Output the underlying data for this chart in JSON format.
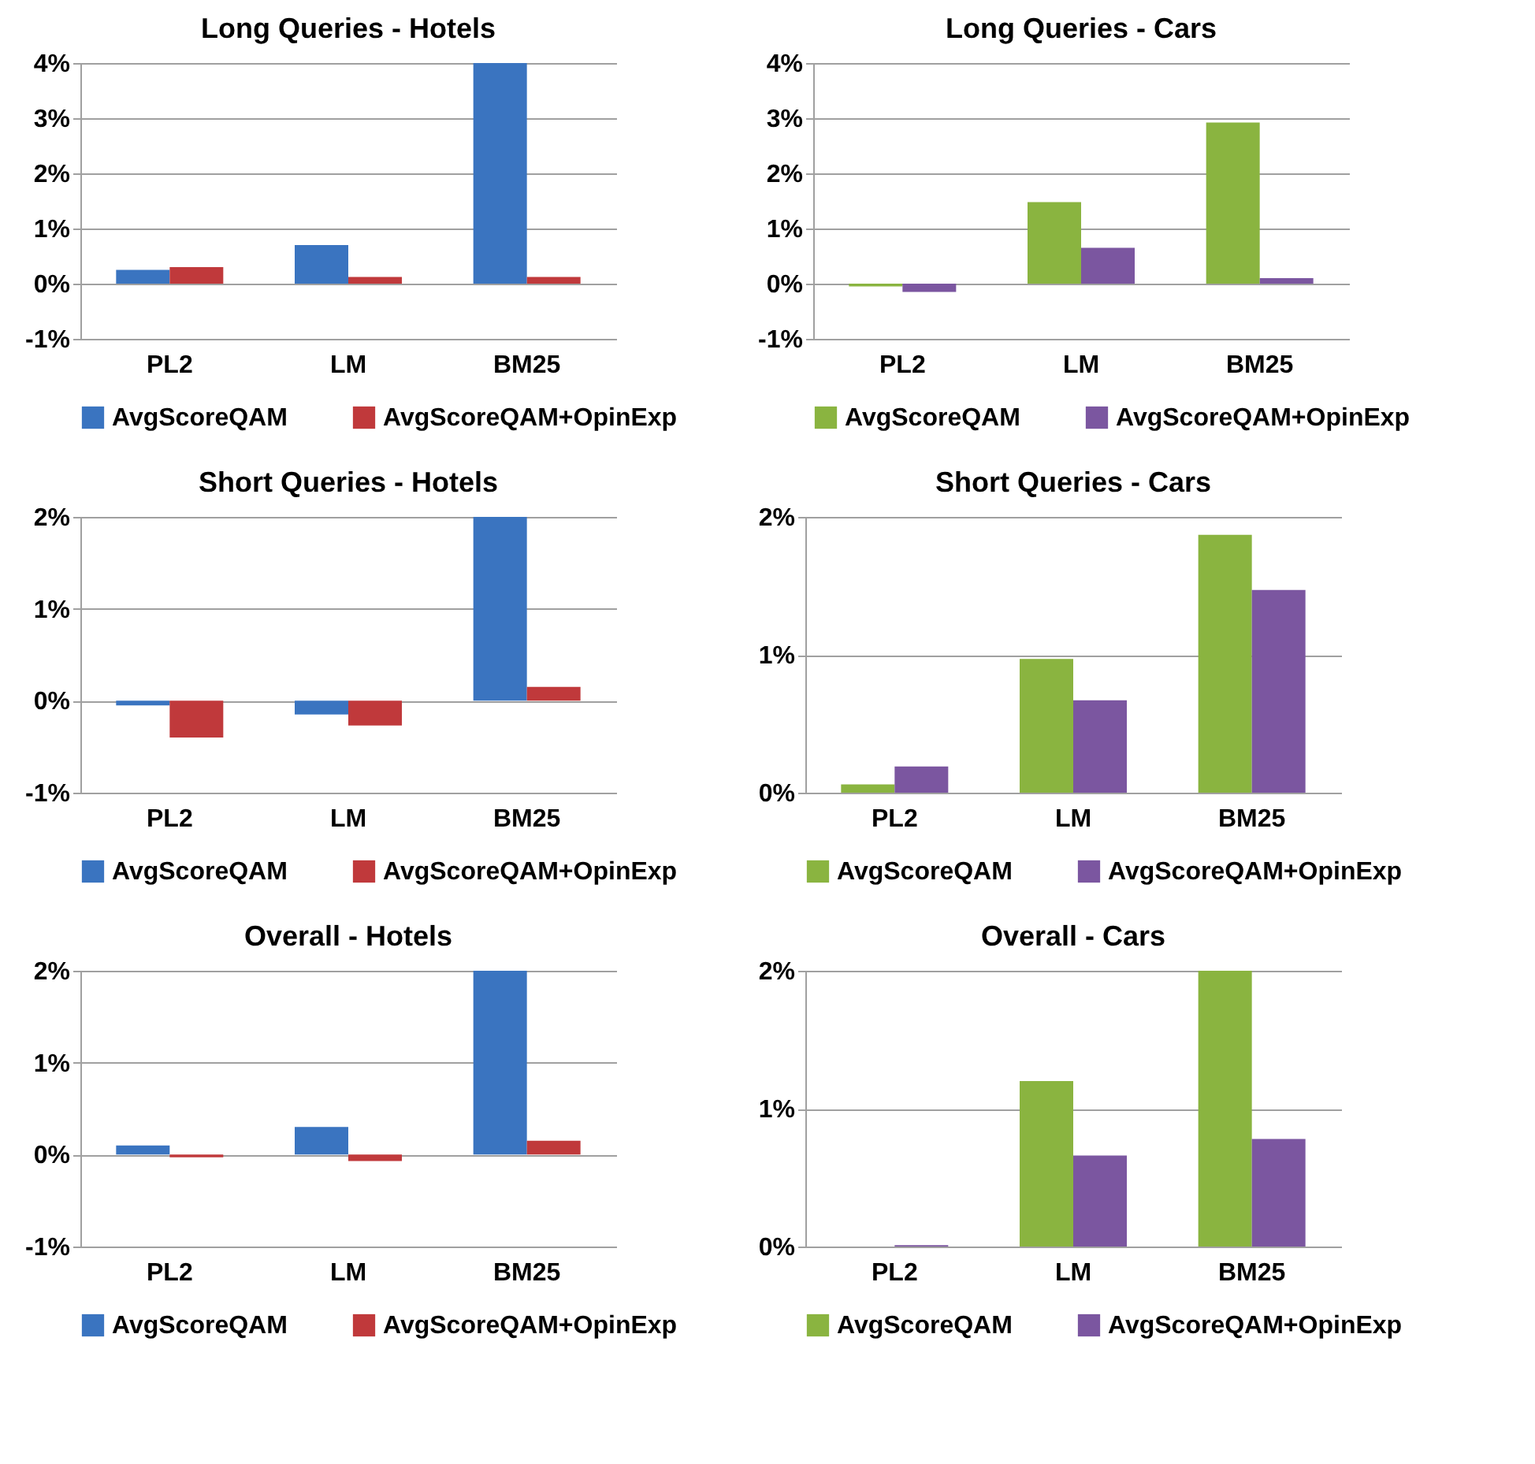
{
  "chart_data": [
    {
      "type": "bar",
      "title": "Long Queries - Hotels",
      "categories": [
        "PL2",
        "LM",
        "BM25"
      ],
      "ylim": [
        -1,
        4
      ],
      "yticks": [
        {
          "value": -1,
          "label": "-1%"
        },
        {
          "value": 0,
          "label": "0%"
        },
        {
          "value": 1,
          "label": "1%"
        },
        {
          "value": 2,
          "label": "2%"
        },
        {
          "value": 3,
          "label": "3%"
        },
        {
          "value": 4,
          "label": "4%"
        }
      ],
      "grid": "y",
      "legend": "bottom",
      "series": [
        {
          "name": "AvgScoreQAM",
          "color": "#3a74c0",
          "values": [
            0.25,
            0.7,
            4.0
          ]
        },
        {
          "name": "AvgScoreQAM+OpinExp",
          "color": "#c0393b",
          "values": [
            0.3,
            0.12,
            0.12
          ]
        }
      ]
    },
    {
      "type": "bar",
      "title": "Long Queries - Cars",
      "categories": [
        "PL2",
        "LM",
        "BM25"
      ],
      "ylim": [
        -1,
        4
      ],
      "yticks": [
        {
          "value": -1,
          "label": "-1%"
        },
        {
          "value": 0,
          "label": "0%"
        },
        {
          "value": 1,
          "label": "1%"
        },
        {
          "value": 2,
          "label": "2%"
        },
        {
          "value": 3,
          "label": "3%"
        },
        {
          "value": 4,
          "label": "4%"
        }
      ],
      "grid": "y",
      "legend": "bottom",
      "series": [
        {
          "name": "AvgScoreQAM",
          "color": "#8ab440",
          "values": [
            -0.05,
            1.48,
            2.92
          ]
        },
        {
          "name": "AvgScoreQAM+OpinExp",
          "color": "#7b56a0",
          "values": [
            -0.15,
            0.65,
            0.1
          ]
        }
      ]
    },
    {
      "type": "bar",
      "title": "Short Queries - Hotels",
      "categories": [
        "PL2",
        "LM",
        "BM25"
      ],
      "ylim": [
        -1,
        2
      ],
      "yticks": [
        {
          "value": -1,
          "label": "-1%"
        },
        {
          "value": 0,
          "label": "0%"
        },
        {
          "value": 1,
          "label": "1%"
        },
        {
          "value": 2,
          "label": "2%"
        }
      ],
      "grid": "y",
      "legend": "bottom",
      "series": [
        {
          "name": "AvgScoreQAM",
          "color": "#3a74c0",
          "values": [
            -0.05,
            -0.15,
            2.0
          ]
        },
        {
          "name": "AvgScoreQAM+OpinExp",
          "color": "#c0393b",
          "values": [
            -0.4,
            -0.27,
            0.15
          ]
        }
      ]
    },
    {
      "type": "bar",
      "title": "Short Queries - Cars",
      "categories": [
        "PL2",
        "LM",
        "BM25"
      ],
      "ylim": [
        0,
        2
      ],
      "yticks": [
        {
          "value": 0,
          "label": "0%"
        },
        {
          "value": 1,
          "label": "1%"
        },
        {
          "value": 2,
          "label": "2%"
        }
      ],
      "grid": "y",
      "legend": "bottom",
      "series": [
        {
          "name": "AvgScoreQAM",
          "color": "#8ab440",
          "values": [
            0.06,
            0.97,
            1.87
          ]
        },
        {
          "name": "AvgScoreQAM+OpinExp",
          "color": "#7b56a0",
          "values": [
            0.19,
            0.67,
            1.47
          ]
        }
      ]
    },
    {
      "type": "bar",
      "title": "Overall - Hotels",
      "categories": [
        "PL2",
        "LM",
        "BM25"
      ],
      "ylim": [
        -1,
        2
      ],
      "yticks": [
        {
          "value": -1,
          "label": "-1%"
        },
        {
          "value": 0,
          "label": "0%"
        },
        {
          "value": 1,
          "label": "1%"
        },
        {
          "value": 2,
          "label": "2%"
        }
      ],
      "grid": "y",
      "legend": "bottom",
      "series": [
        {
          "name": "AvgScoreQAM",
          "color": "#3a74c0",
          "values": [
            0.1,
            0.3,
            2.0
          ]
        },
        {
          "name": "AvgScoreQAM+OpinExp",
          "color": "#c0393b",
          "values": [
            -0.03,
            -0.07,
            0.15
          ]
        }
      ]
    },
    {
      "type": "bar",
      "title": "Overall - Cars",
      "categories": [
        "PL2",
        "LM",
        "BM25"
      ],
      "ylim": [
        0,
        2
      ],
      "yticks": [
        {
          "value": 0,
          "label": "0%"
        },
        {
          "value": 1,
          "label": "1%"
        },
        {
          "value": 2,
          "label": "2%"
        }
      ],
      "grid": "y",
      "legend": "bottom",
      "series": [
        {
          "name": "AvgScoreQAM",
          "color": "#8ab440",
          "values": [
            0.0,
            1.2,
            2.0
          ]
        },
        {
          "name": "AvgScoreQAM+OpinExp",
          "color": "#7b56a0",
          "values": [
            0.01,
            0.66,
            0.78
          ]
        }
      ]
    }
  ]
}
